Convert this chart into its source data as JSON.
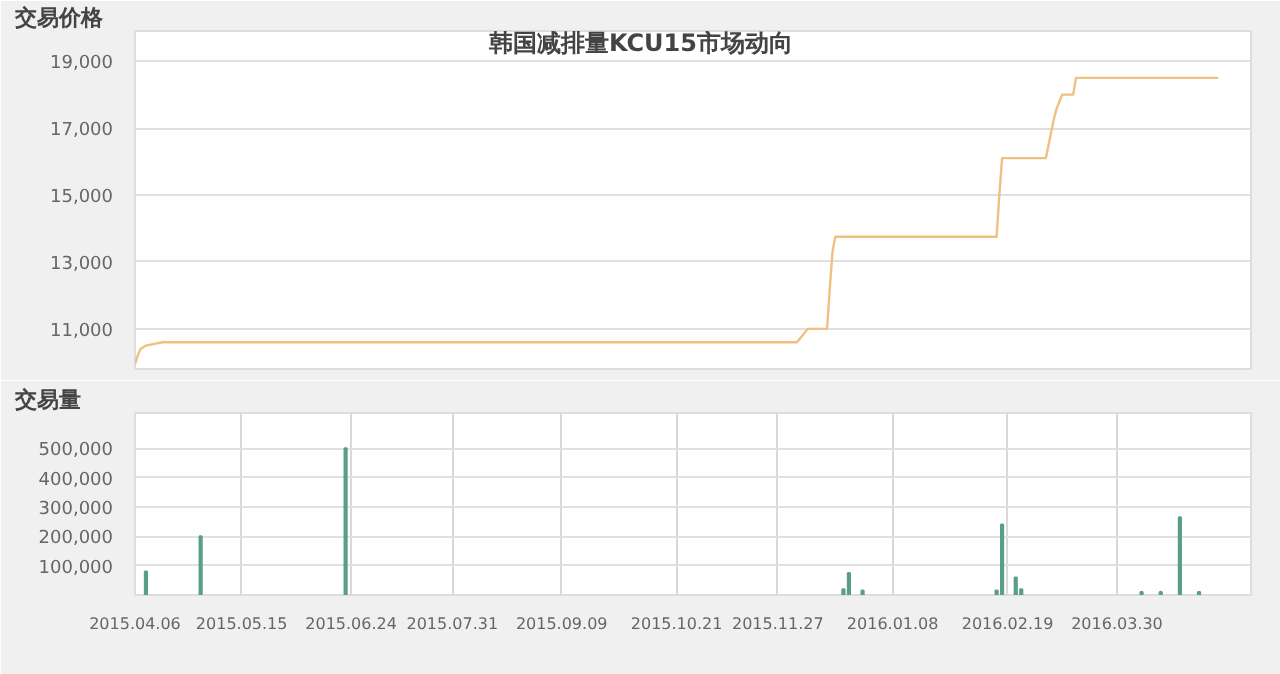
{
  "chart_data": [
    {
      "type": "line",
      "title": "韩国减排量KCU15市场动向",
      "ylabel": "交易价格",
      "xlim": [
        "2015-04-06",
        "2016-05-18"
      ],
      "xticks": [
        {
          "value": "2015-04-06",
          "label": null
        },
        {
          "value": "2015-05-15",
          "label": null
        },
        {
          "value": "2015-06-24",
          "label": null
        },
        {
          "value": "2015-07-31",
          "label": null
        },
        {
          "value": "2015-09-09",
          "label": null
        },
        {
          "value": "2015-10-21",
          "label": null
        },
        {
          "value": "2015-11-27",
          "label": null
        },
        {
          "value": "2016-01-08",
          "label": null
        },
        {
          "value": "2016-02-19",
          "label": null
        },
        {
          "value": "2016-03-30",
          "label": null
        }
      ],
      "ylim": [
        9800,
        19900
      ],
      "yticks": [
        {
          "value": 11000,
          "label": "11,000"
        },
        {
          "value": 13000,
          "label": "13,000"
        },
        {
          "value": 15000,
          "label": "15,000"
        },
        {
          "value": 17000,
          "label": "17,000"
        },
        {
          "value": 19000,
          "label": "19,000"
        }
      ],
      "tick_labels": "y",
      "grid": "y",
      "series": [
        {
          "color": "#f0c080",
          "x": [
            "2015-04-06",
            "2015-04-07",
            "2015-04-08",
            "2015-04-10",
            "2015-04-16",
            "2015-12-04",
            "2015-12-08",
            "2015-12-15",
            "2015-12-16",
            "2015-12-17",
            "2015-12-18",
            "2016-02-15",
            "2016-02-16",
            "2016-02-17",
            "2016-03-04",
            "2016-03-07",
            "2016-03-08",
            "2016-03-10",
            "2016-03-14",
            "2016-03-15",
            "2016-05-06"
          ],
          "values": [
            9950,
            10200,
            10400,
            10500,
            10600,
            10600,
            11000,
            11000,
            12200,
            13300,
            13750,
            13750,
            15000,
            16100,
            16100,
            17300,
            17600,
            18000,
            18000,
            18500,
            18500
          ]
        }
      ]
    },
    {
      "type": "bar",
      "ylabel": "交易量",
      "xlim": [
        "2015-04-06",
        "2016-05-18"
      ],
      "xticks": [
        {
          "value": "2015-04-06",
          "label": "2015.04.06"
        },
        {
          "value": "2015-05-15",
          "label": "2015.05.15"
        },
        {
          "value": "2015-06-24",
          "label": "2015.06.24"
        },
        {
          "value": "2015-07-31",
          "label": "2015.07.31"
        },
        {
          "value": "2015-09-09",
          "label": "2015.09.09"
        },
        {
          "value": "2015-10-21",
          "label": "2015.10.21"
        },
        {
          "value": "2015-11-27",
          "label": "2015.11.27"
        },
        {
          "value": "2016-01-08",
          "label": "2016.01.08"
        },
        {
          "value": "2016-02-19",
          "label": "2016.02.19"
        },
        {
          "value": "2016-03-30",
          "label": "2016.03.30"
        }
      ],
      "ylim": [
        0,
        620000
      ],
      "yticks": [
        {
          "value": 100000,
          "label": "100,000"
        },
        {
          "value": 200000,
          "label": "200,000"
        },
        {
          "value": 300000,
          "label": "300,000"
        },
        {
          "value": 400000,
          "label": "400,000"
        },
        {
          "value": 500000,
          "label": "500,000"
        }
      ],
      "grid": true,
      "series": [
        {
          "color": "#5a9e8a",
          "x": [
            "2015-04-10",
            "2015-04-30",
            "2015-06-22",
            "2015-12-21",
            "2015-12-23",
            "2015-12-28",
            "2016-02-15",
            "2016-02-17",
            "2016-02-22",
            "2016-02-24",
            "2016-04-08",
            "2016-04-15",
            "2016-04-22",
            "2016-04-29"
          ],
          "values": [
            80000,
            200000,
            500000,
            20000,
            75000,
            15000,
            15000,
            240000,
            60000,
            20000,
            10000,
            10000,
            265000,
            10000
          ]
        }
      ]
    }
  ]
}
